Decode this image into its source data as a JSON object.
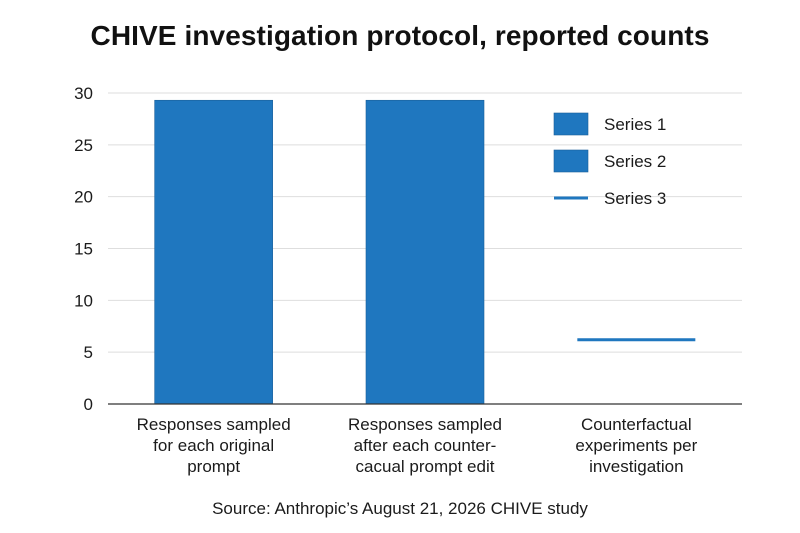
{
  "chart_data": {
    "type": "bar",
    "title": "CHIVE investigation protocol, reported counts",
    "xlabel": "",
    "ylabel": "",
    "ylim": [
      0,
      30
    ],
    "yticks": [
      0,
      5,
      10,
      15,
      20,
      25,
      30
    ],
    "grid": true,
    "legend_position": "top-right",
    "categories": [
      [
        "Responses sampled",
        "for each original",
        "prompt"
      ],
      [
        "Responses sampled",
        "after each counter-",
        "cacual prompt edit"
      ],
      [
        "Counterfactual",
        "experiments per",
        "investigation"
      ]
    ],
    "series": [
      {
        "name": "Series 1",
        "kind": "bar",
        "color": "#1f77bf",
        "values": [
          29.3,
          null,
          null
        ]
      },
      {
        "name": "Series 2",
        "kind": "bar",
        "color": "#1f77bf",
        "values": [
          null,
          29.3,
          null
        ]
      },
      {
        "name": "Series 3",
        "kind": "line",
        "color": "#1f77bf",
        "values": [
          null,
          null,
          6.2
        ]
      }
    ],
    "source": "Source: Anthropic’s August 21, 2026 CHIVE study"
  }
}
